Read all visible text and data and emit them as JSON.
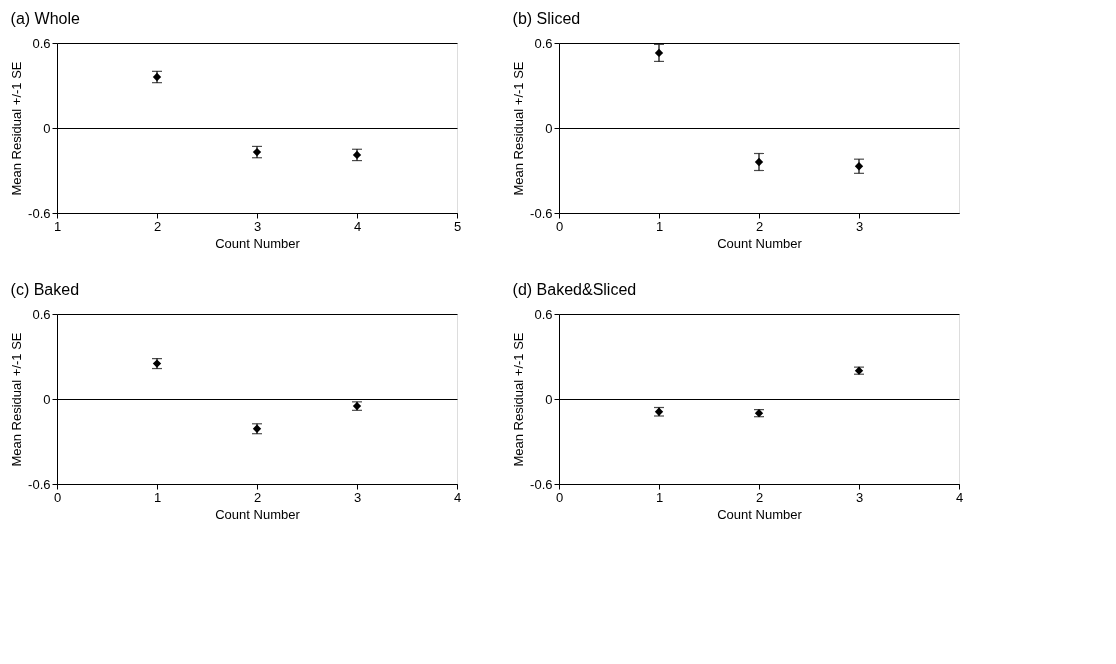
{
  "chart_data": [
    {
      "type": "scatter",
      "title": "(a)  Whole",
      "xlabel": "Count Number",
      "ylabel": "Mean Residual +/-1 SE",
      "x": [
        2,
        3,
        4
      ],
      "values": [
        0.36,
        -0.17,
        -0.19
      ],
      "errors": [
        0.04,
        0.04,
        0.04
      ],
      "color": "#000000",
      "marker": "diamond",
      "xlim": [
        1,
        5
      ],
      "xticks": [
        1,
        2,
        3,
        4,
        5
      ],
      "ylim": [
        -0.6,
        0.6
      ],
      "yticks": [
        -0.6,
        0,
        0.6
      ],
      "grid": "y"
    },
    {
      "type": "scatter",
      "title": "(b)  Sliced",
      "xlabel": "Count Number",
      "ylabel": "Mean Residual +/-1 SE",
      "x": [
        1,
        2,
        3
      ],
      "values": [
        0.53,
        -0.24,
        -0.27
      ],
      "errors": [
        0.06,
        0.06,
        0.05
      ],
      "color": "#000000",
      "marker": "diamond",
      "xlim": [
        0,
        4
      ],
      "xticks": [
        0,
        1,
        2,
        3
      ],
      "ylim": [
        -0.6,
        0.6
      ],
      "yticks": [
        -0.6,
        0,
        0.6
      ],
      "grid": "y"
    },
    {
      "type": "scatter",
      "title": "(c)  Baked",
      "xlabel": "Count Number",
      "ylabel": "Mean Residual +/-1 SE",
      "x": [
        1,
        2,
        3
      ],
      "values": [
        0.25,
        -0.21,
        -0.05
      ],
      "errors": [
        0.035,
        0.035,
        0.03
      ],
      "color": "#000000",
      "marker": "diamond",
      "xlim": [
        0,
        4
      ],
      "xticks": [
        0,
        1,
        2,
        3,
        4
      ],
      "ylim": [
        -0.6,
        0.6
      ],
      "yticks": [
        -0.6,
        0,
        0.6
      ],
      "grid": "y"
    },
    {
      "type": "scatter",
      "title": "(d)  Baked&Sliced",
      "xlabel": "Count Number",
      "ylabel": "Mean Residual +/-1 SE",
      "x": [
        1,
        2,
        3
      ],
      "values": [
        -0.09,
        -0.1,
        0.2
      ],
      "errors": [
        0.03,
        0.025,
        0.025
      ],
      "color": "#000000",
      "marker": "diamond",
      "xlim": [
        0,
        4
      ],
      "xticks": [
        0,
        1,
        2,
        3,
        4
      ],
      "ylim": [
        -0.6,
        0.6
      ],
      "yticks": [
        -0.6,
        0,
        0.6
      ],
      "grid": "y"
    }
  ]
}
